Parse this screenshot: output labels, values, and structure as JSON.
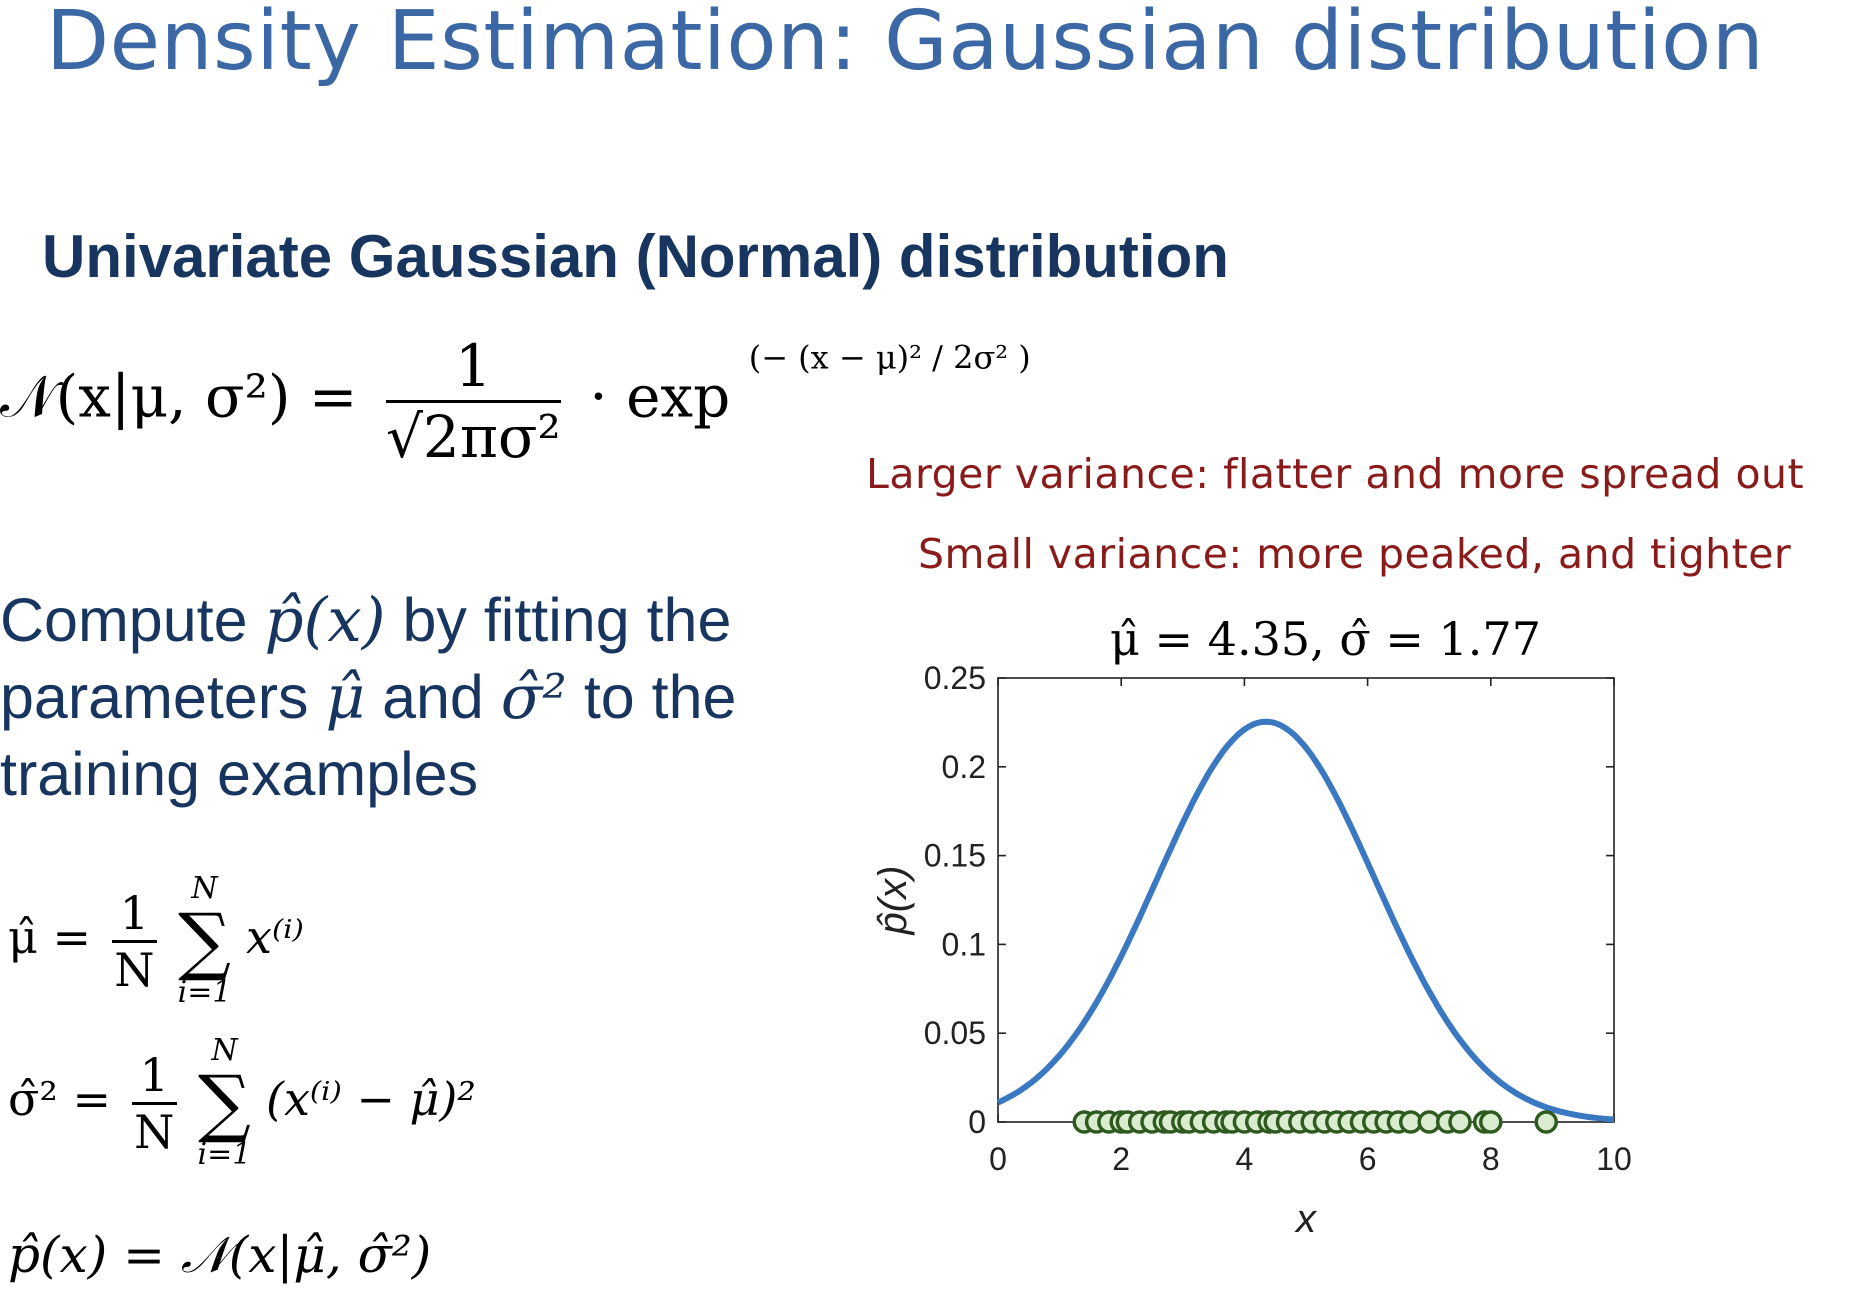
{
  "slide": {
    "title": "Density Estimation: Gaussian distribution",
    "subtitle": "Univariate Gaussian (Normal) distribution"
  },
  "formula_pdf": {
    "lhs": "𝒩(x|μ, σ²) =",
    "frac_num": "1",
    "frac_den": "√2πσ²",
    "dot_exp": "· exp",
    "exponent": "(− (x − μ)² / 2σ² )"
  },
  "compute_text": {
    "line1_a": "Compute ",
    "p_hat_x": "p̂(x)",
    "line1_b": " by fitting the",
    "line2_a": "parameters ",
    "mu_hat": "μ̂",
    "line2_b": " and ",
    "sigma_hat_sq": "σ̂²",
    "line2_c": " to the",
    "line3": "training examples"
  },
  "estimators": {
    "mu": {
      "lhs": "μ̂ =",
      "frac_num": "1",
      "frac_den": "N",
      "sum_top": "N",
      "sum_bottom": "i=1",
      "term": "x⁽ⁱ⁾"
    },
    "sigma": {
      "lhs": "σ̂² =",
      "frac_num": "1",
      "frac_den": "N",
      "sum_top": "N",
      "sum_bottom": "i=1",
      "term": "(x⁽ⁱ⁾ − μ̂)²"
    },
    "p": {
      "expr": "p̂(x) = 𝒩(x|μ̂, σ̂²)"
    }
  },
  "notes": {
    "line1": "Larger variance: flatter and more spread out",
    "line2": "Small variance: more peaked, and tighter"
  },
  "colors": {
    "curve": "#3a78c2",
    "points_edge": "#2f5a1f",
    "points_fill": "#d9ecd0",
    "note": "#8a1b1b",
    "title": "#3b67a5"
  },
  "chart_data": {
    "type": "line",
    "title": "μ̂ = 4.35, σ̂ = 1.77",
    "xlabel": "x",
    "ylabel": "p̂(x)",
    "xlim": [
      0,
      10
    ],
    "ylim": [
      0,
      0.25
    ],
    "xticks": [
      "0",
      "2",
      "4",
      "6",
      "8",
      "10"
    ],
    "yticks": [
      "0",
      "0.05",
      "0.1",
      "0.15",
      "0.2",
      "0.25"
    ],
    "grid": false,
    "series": [
      {
        "kind": "curve",
        "mu": 4.35,
        "sigma": 1.77
      },
      {
        "kind": "samples_scatter",
        "x": [
          1.4,
          1.6,
          1.8,
          2.0,
          2.1,
          2.3,
          2.5,
          2.7,
          2.8,
          3.0,
          3.1,
          3.3,
          3.5,
          3.7,
          3.8,
          4.0,
          4.2,
          4.4,
          4.5,
          4.7,
          4.9,
          5.1,
          5.3,
          5.5,
          5.7,
          5.9,
          6.1,
          6.3,
          6.5,
          6.7,
          7.0,
          7.3,
          7.5,
          7.9,
          8.0,
          8.9
        ],
        "y": 0
      }
    ]
  }
}
